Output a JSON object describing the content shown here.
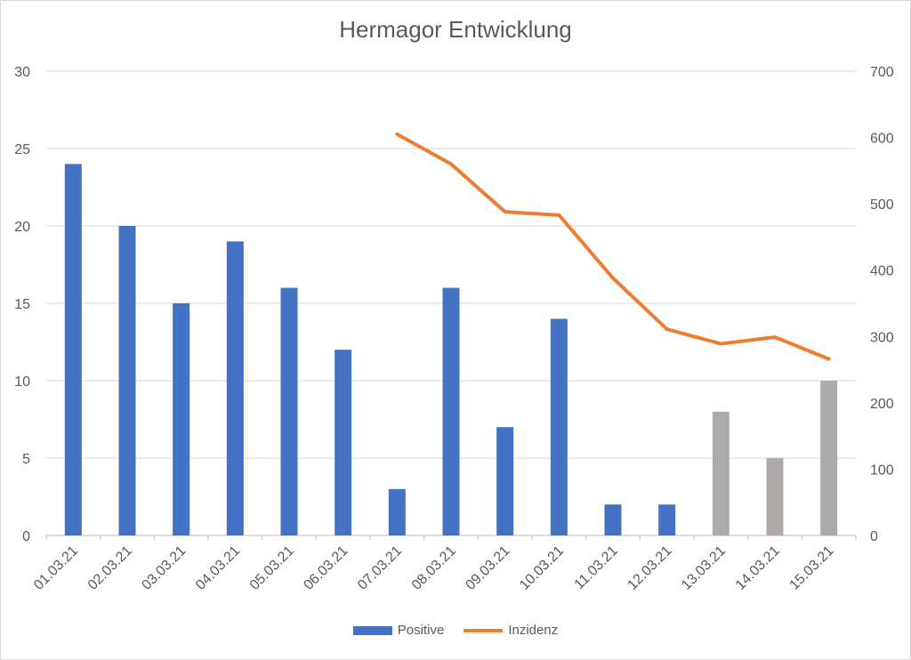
{
  "chart_data": {
    "type": "bar",
    "title": "Hermagor Entwicklung",
    "categories": [
      "01.03.21",
      "02.03.21",
      "03.03.21",
      "04.03.21",
      "05.03.21",
      "06.03.21",
      "07.03.21",
      "08.03.21",
      "09.03.21",
      "10.03.21",
      "11.03.21",
      "12.03.21",
      "13.03.21",
      "14.03.21",
      "15.03.21"
    ],
    "series": [
      {
        "name": "Positive",
        "type": "bar",
        "axis": "left",
        "color": "#4472c4",
        "values": [
          24,
          20,
          15,
          19,
          16,
          12,
          3,
          16,
          7,
          14,
          2,
          2,
          8,
          5,
          10
        ],
        "point_colors": [
          "#4472c4",
          "#4472c4",
          "#4472c4",
          "#4472c4",
          "#4472c4",
          "#4472c4",
          "#4472c4",
          "#4472c4",
          "#4472c4",
          "#4472c4",
          "#4472c4",
          "#4472c4",
          "#aeaaaa",
          "#aeaaaa",
          "#aeaaaa"
        ]
      },
      {
        "name": "Inzidenz",
        "type": "line",
        "axis": "right",
        "color": "#ed7d31",
        "values": [
          null,
          null,
          null,
          null,
          null,
          null,
          605,
          560,
          488,
          483,
          388,
          311,
          289,
          299,
          266
        ]
      }
    ],
    "y_left": {
      "min": 0,
      "max": 30,
      "ticks": [
        0,
        5,
        10,
        15,
        20,
        25,
        30
      ]
    },
    "y_right": {
      "min": 0,
      "max": 700,
      "ticks": [
        0,
        100,
        200,
        300,
        400,
        500,
        600,
        700
      ]
    },
    "grid": true,
    "legend_position": "bottom"
  }
}
